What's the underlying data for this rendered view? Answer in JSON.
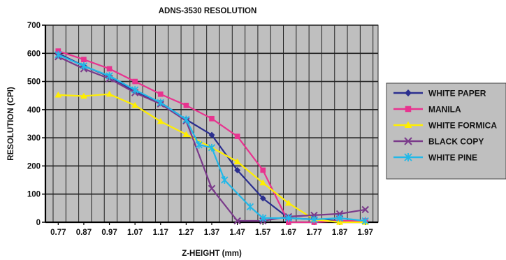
{
  "chart_data": {
    "type": "line",
    "title": "ADNS-3530 RESOLUTION",
    "xlabel": "Z-HEIGHT (mm)",
    "ylabel": "RESOLUTION (CPI)",
    "ylim": [
      0,
      700
    ],
    "yticks": [
      0,
      100,
      200,
      300,
      400,
      500,
      600,
      700
    ],
    "xlim": [
      0.72,
      2.02
    ],
    "x_tick_labels": [
      "0.77",
      "0.87",
      "0.97",
      "1.07",
      "1.17",
      "1.27",
      "1.37",
      "1.47",
      "1.57",
      "1.67",
      "1.77",
      "1.87",
      "1.97"
    ],
    "grid": true,
    "legend_position": "right",
    "plot_background": "#bfbfbf",
    "series": [
      {
        "name": "WHITE PAPER",
        "color": "#2b2f8f",
        "marker": "diamond",
        "points": [
          [
            0.77,
            600
          ],
          [
            0.87,
            555
          ],
          [
            0.97,
            518
          ],
          [
            1.07,
            465
          ],
          [
            1.17,
            425
          ],
          [
            1.27,
            365
          ],
          [
            1.37,
            310
          ],
          [
            1.47,
            185
          ],
          [
            1.57,
            85
          ],
          [
            1.67,
            15
          ],
          [
            1.77,
            10
          ],
          [
            1.87,
            5
          ],
          [
            1.97,
            5
          ]
        ]
      },
      {
        "name": "MANILA",
        "color": "#e8338f",
        "marker": "square",
        "points": [
          [
            0.77,
            608
          ],
          [
            0.87,
            578
          ],
          [
            0.97,
            545
          ],
          [
            1.07,
            500
          ],
          [
            1.17,
            455
          ],
          [
            1.27,
            415
          ],
          [
            1.37,
            368
          ],
          [
            1.47,
            305
          ],
          [
            1.57,
            185
          ],
          [
            1.67,
            0
          ],
          [
            1.77,
            0
          ],
          [
            1.87,
            5
          ],
          [
            1.97,
            5
          ]
        ]
      },
      {
        "name": "WHITE FORMICA",
        "color": "#ffee00",
        "marker": "triangle",
        "points": [
          [
            0.77,
            452
          ],
          [
            0.87,
            448
          ],
          [
            0.97,
            455
          ],
          [
            1.07,
            415
          ],
          [
            1.17,
            358
          ],
          [
            1.27,
            312
          ],
          [
            1.37,
            265
          ],
          [
            1.47,
            215
          ],
          [
            1.57,
            140
          ],
          [
            1.67,
            68
          ],
          [
            1.77,
            10
          ],
          [
            1.87,
            0
          ],
          [
            1.97,
            0
          ]
        ]
      },
      {
        "name": "BLACK COPY",
        "color": "#7a3a8a",
        "marker": "x",
        "points": [
          [
            0.77,
            588
          ],
          [
            0.87,
            545
          ],
          [
            0.97,
            510
          ],
          [
            1.07,
            460
          ],
          [
            1.17,
            420
          ],
          [
            1.27,
            360
          ],
          [
            1.37,
            120
          ],
          [
            1.47,
            5
          ],
          [
            1.57,
            5
          ],
          [
            1.67,
            20
          ],
          [
            1.77,
            25
          ],
          [
            1.87,
            30
          ],
          [
            1.97,
            45
          ]
        ]
      },
      {
        "name": "WHITE PINE",
        "color": "#22b8e8",
        "marker": "star",
        "points": [
          [
            0.77,
            595
          ],
          [
            0.87,
            555
          ],
          [
            0.97,
            520
          ],
          [
            1.07,
            470
          ],
          [
            1.17,
            425
          ],
          [
            1.27,
            365
          ],
          [
            1.32,
            275
          ],
          [
            1.37,
            265
          ],
          [
            1.42,
            150
          ],
          [
            1.52,
            55
          ],
          [
            1.57,
            15
          ],
          [
            1.67,
            15
          ],
          [
            1.77,
            10
          ],
          [
            1.87,
            15
          ],
          [
            1.97,
            5
          ]
        ]
      }
    ]
  }
}
